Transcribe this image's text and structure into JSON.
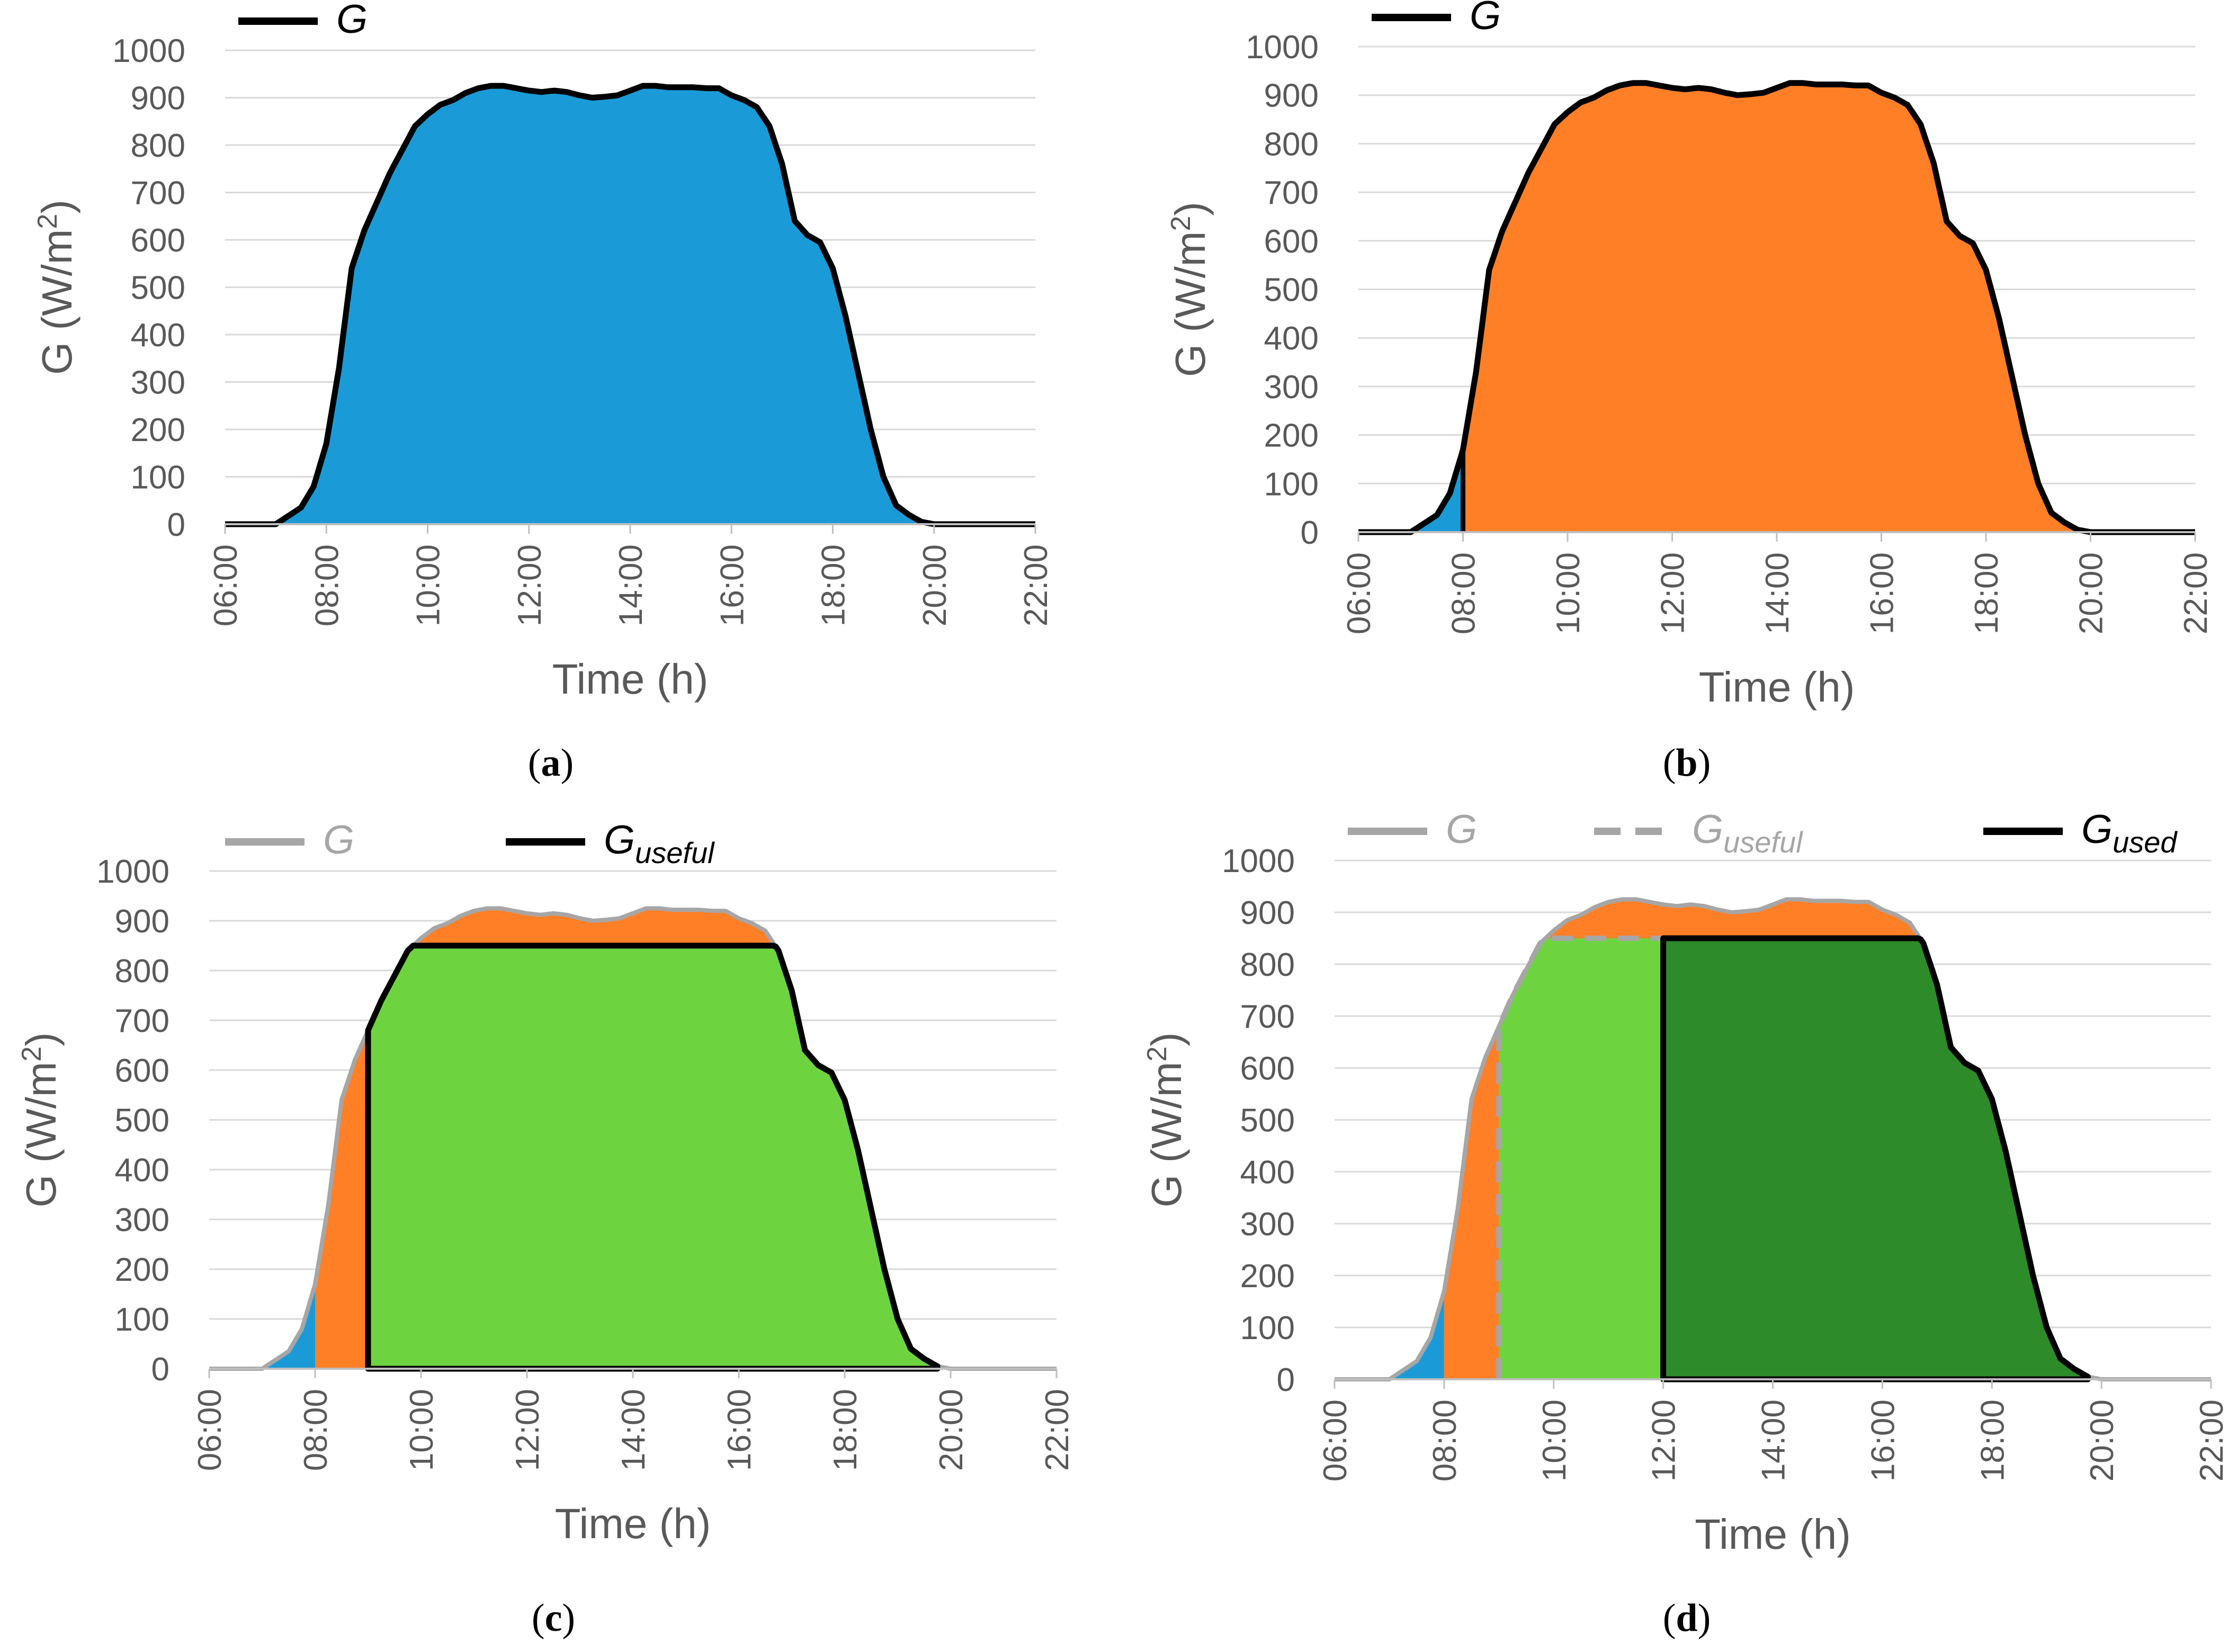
{
  "chart_data": [
    {
      "panel": "a",
      "type": "area",
      "xlabel": "Time (h)",
      "ylabel_prefix": "G (W/m",
      "ylabel_sup": "2",
      "ylabel_suffix": ")",
      "ylim": [
        0,
        1000
      ],
      "yticks": [
        "0",
        "100",
        "200",
        "300",
        "400",
        "500",
        "600",
        "700",
        "800",
        "900",
        "1000"
      ],
      "xticks": [
        "06:00",
        "08:00",
        "10:00",
        "12:00",
        "14:00",
        "16:00",
        "18:00",
        "20:00",
        "22:00"
      ],
      "xlim_hours": [
        6,
        22
      ],
      "grid": true,
      "legend": [
        {
          "label": "G",
          "sub": "",
          "style": "solid",
          "color": "#000000"
        }
      ],
      "label_open": "(",
      "label_letter": "a",
      "label_close": ")"
    },
    {
      "panel": "b",
      "type": "area",
      "xlabel": "Time (h)",
      "ylabel_prefix": "G (W/m",
      "ylabel_sup": "2",
      "ylabel_suffix": ")",
      "ylim": [
        0,
        1000
      ],
      "yticks": [
        "0",
        "100",
        "200",
        "300",
        "400",
        "500",
        "600",
        "700",
        "800",
        "900",
        "1000"
      ],
      "xticks": [
        "06:00",
        "08:00",
        "10:00",
        "12:00",
        "14:00",
        "16:00",
        "18:00",
        "20:00",
        "22:00"
      ],
      "xlim_hours": [
        6,
        22
      ],
      "grid": true,
      "legend": [
        {
          "label": "G",
          "sub": "",
          "style": "solid",
          "color": "#000000"
        }
      ],
      "label_open": "(",
      "label_letter": "b",
      "label_close": ")"
    },
    {
      "panel": "c",
      "type": "area",
      "xlabel": "Time (h)",
      "ylabel_prefix": "G (W/m",
      "ylabel_sup": "2",
      "ylabel_suffix": ")",
      "ylim": [
        0,
        1000
      ],
      "yticks": [
        "0",
        "100",
        "200",
        "300",
        "400",
        "500",
        "600",
        "700",
        "800",
        "900",
        "1000"
      ],
      "xticks": [
        "06:00",
        "08:00",
        "10:00",
        "12:00",
        "14:00",
        "16:00",
        "18:00",
        "20:00",
        "22:00"
      ],
      "xlim_hours": [
        6,
        22
      ],
      "grid": true,
      "legend": [
        {
          "label": "G",
          "sub": "",
          "style": "solid",
          "color": "#a6a6a6"
        },
        {
          "label": "G",
          "sub": "useful",
          "style": "solid",
          "color": "#000000"
        }
      ],
      "label_open": "(",
      "label_letter": "c",
      "label_close": ")"
    },
    {
      "panel": "d",
      "type": "area",
      "xlabel": "Time (h)",
      "ylabel_prefix": "G (W/m",
      "ylabel_sup": "2",
      "ylabel_suffix": ")",
      "ylim": [
        0,
        1000
      ],
      "yticks": [
        "0",
        "100",
        "200",
        "300",
        "400",
        "500",
        "600",
        "700",
        "800",
        "900",
        "1000"
      ],
      "xticks": [
        "06:00",
        "08:00",
        "10:00",
        "12:00",
        "14:00",
        "16:00",
        "18:00",
        "20:00",
        "22:00"
      ],
      "xlim_hours": [
        6,
        22
      ],
      "grid": true,
      "legend": [
        {
          "label": "G",
          "sub": "",
          "style": "solid",
          "color": "#a6a6a6"
        },
        {
          "label": "G",
          "sub": "useful",
          "style": "dashed",
          "color": "#a6a6a6"
        },
        {
          "label": "G",
          "sub": "used",
          "style": "solid",
          "color": "#000000"
        }
      ],
      "label_open": "(",
      "label_letter": "d",
      "label_close": ")"
    }
  ],
  "irradiance_curve": {
    "time_h": [
      6.0,
      7.0,
      7.5,
      7.75,
      8.0,
      8.25,
      8.5,
      8.75,
      9.0,
      9.25,
      9.5,
      9.75,
      10.0,
      10.25,
      10.5,
      10.75,
      11.0,
      11.25,
      11.5,
      11.75,
      12.0,
      12.25,
      12.5,
      12.75,
      13.0,
      13.25,
      13.5,
      13.75,
      14.0,
      14.25,
      14.5,
      14.75,
      15.0,
      15.25,
      15.5,
      15.75,
      16.0,
      16.25,
      16.5,
      16.75,
      17.0,
      17.25,
      17.5,
      17.75,
      18.0,
      18.25,
      18.5,
      18.75,
      19.0,
      19.25,
      19.5,
      19.75,
      20.0,
      20.25,
      20.5,
      20.75,
      21.0,
      21.25,
      22.0
    ],
    "G_wm2": [
      0,
      0,
      35,
      80,
      170,
      330,
      540,
      620,
      680,
      740,
      790,
      840,
      865,
      885,
      895,
      910,
      920,
      925,
      925,
      920,
      915,
      912,
      915,
      912,
      905,
      900,
      902,
      905,
      915,
      925,
      925,
      922,
      922,
      922,
      920,
      920,
      905,
      895,
      880,
      840,
      760,
      640,
      610,
      595,
      540,
      440,
      320,
      200,
      100,
      40,
      20,
      5,
      0,
      0,
      0,
      0,
      0,
      0,
      0
    ]
  },
  "regions": {
    "threshold_start_h": 8.0,
    "useful_cap_wm2": 850,
    "useful_start_h": 9.0,
    "useful_end_h": 19.75,
    "used_start_h": 12.0
  },
  "colors": {
    "blue": "#1a9bd7",
    "orange": "#ff7f27",
    "light_green": "#6dd43f",
    "dark_green": "#2e8b2a",
    "grid": "#d9d9d9",
    "axis_text": "#595959",
    "gray_line": "#a6a6a6",
    "black": "#000000"
  }
}
